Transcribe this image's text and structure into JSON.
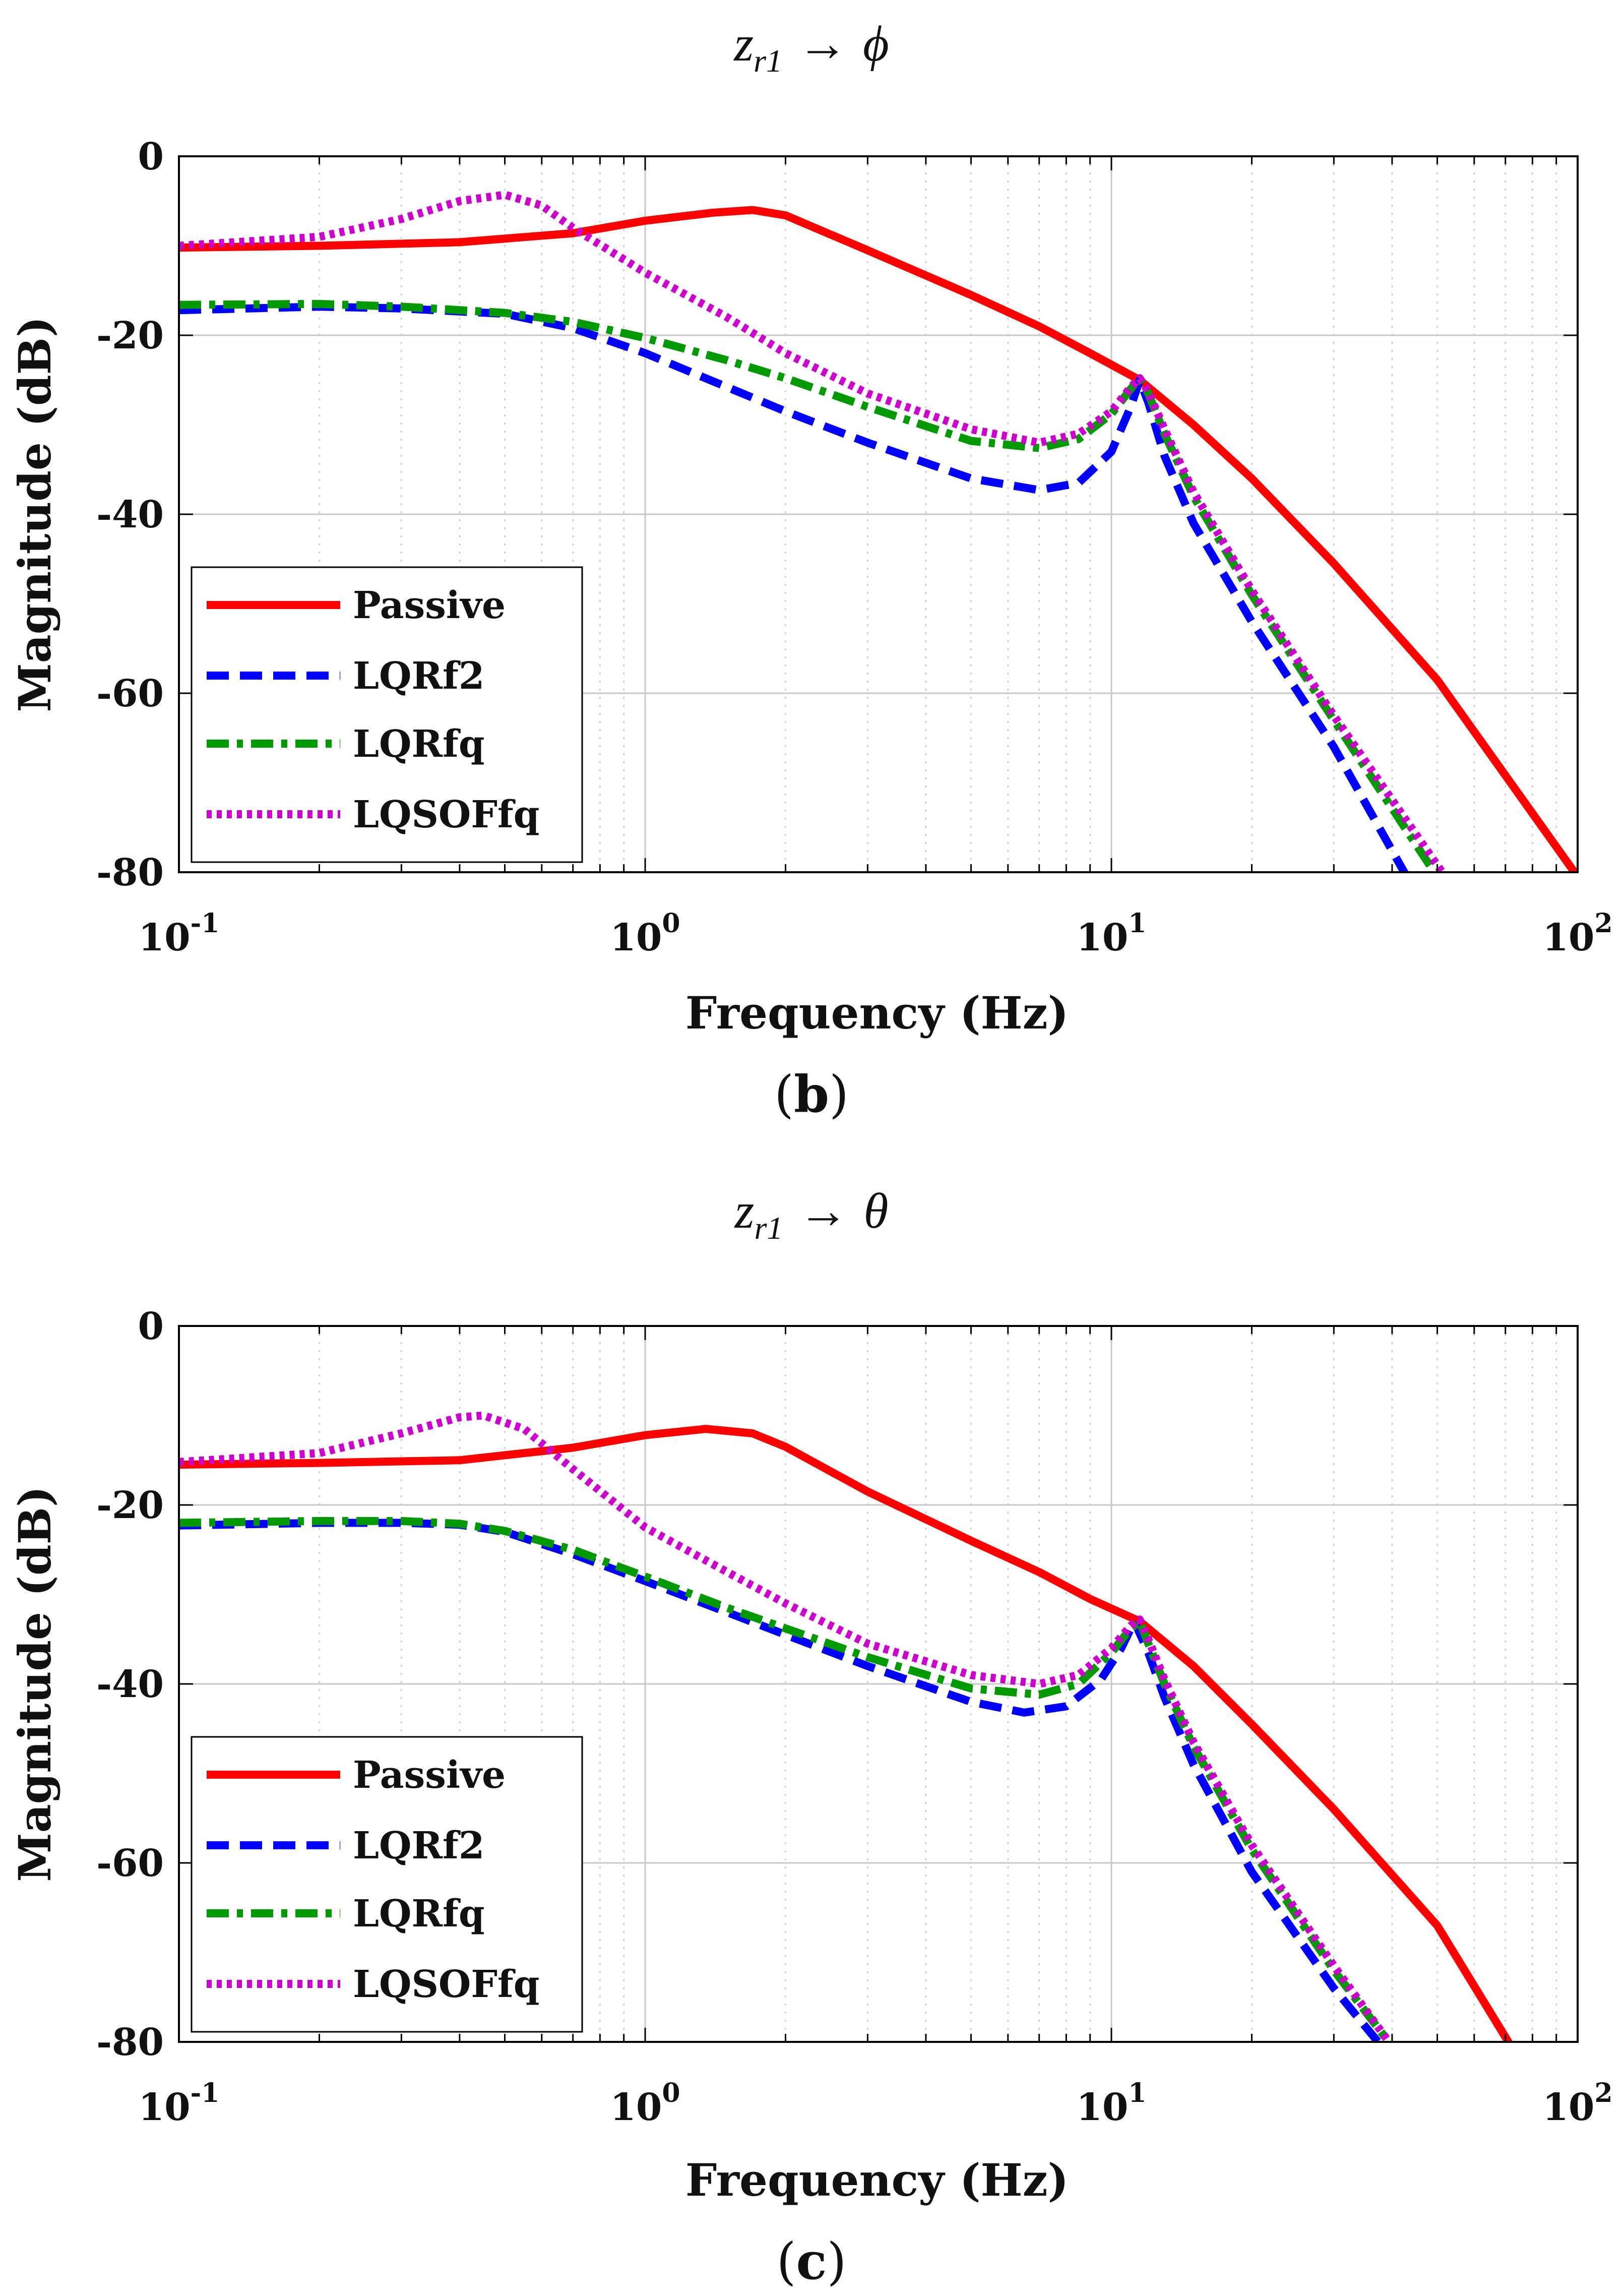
{
  "colors": {
    "passive": "#ff0000",
    "lqrf2": "#0000ff",
    "lqrfq": "#009900",
    "lqsoffq": "#cc00cc",
    "grid": "#c8c8c8",
    "axis": "#000000"
  },
  "chart_data": [
    {
      "type": "line",
      "panel": "b",
      "panel_label": {
        "open": "(",
        "letter": "b",
        "close": ")"
      },
      "title": {
        "base": "z",
        "sub": "r1",
        "arrow": "→",
        "symbol": "ϕ"
      },
      "xlabel": "Frequency (Hz)",
      "ylabel": "Magnitude (dB)",
      "xscale": "log",
      "xlim": [
        0.1,
        100
      ],
      "ylim": [
        -80,
        0
      ],
      "yticks": [
        "0",
        "-20",
        "-40",
        "-60",
        "-80"
      ],
      "xticks": [
        {
          "base": "10",
          "exp": "-1"
        },
        {
          "base": "10",
          "exp": "0"
        },
        {
          "base": "10",
          "exp": "1"
        },
        {
          "base": "10",
          "exp": "2"
        }
      ],
      "grid": true,
      "legend": {
        "position": "bottom-left",
        "entries": [
          "Passive",
          "LQRf2",
          "LQRfq",
          "LQSOFfq"
        ]
      },
      "series": [
        {
          "name": "Passive",
          "style": "solid",
          "x": [
            0.1,
            0.2,
            0.4,
            0.7,
            1.0,
            1.4,
            1.7,
            2.0,
            3.0,
            5.0,
            7.0,
            9.0,
            11.5,
            15,
            20,
            30,
            50,
            100
          ],
          "y": [
            -10.2,
            -10.0,
            -9.6,
            -8.6,
            -7.2,
            -6.3,
            -6.0,
            -6.6,
            -10.5,
            -15.5,
            -19.0,
            -22.0,
            -25.0,
            -30.0,
            -36.0,
            -45.5,
            -58.5,
            -80.5
          ]
        },
        {
          "name": "LQRf2",
          "style": "dashed",
          "x": [
            0.1,
            0.2,
            0.3,
            0.5,
            0.7,
            1.0,
            1.5,
            2.0,
            3.0,
            5.0,
            7.0,
            8.5,
            10.0,
            11.0,
            11.5,
            12.0,
            13.0,
            15,
            20,
            30,
            43
          ],
          "y": [
            -17.2,
            -16.8,
            -17.0,
            -17.6,
            -19.2,
            -22.0,
            -25.8,
            -28.5,
            -32.0,
            -36.0,
            -37.3,
            -36.5,
            -33.0,
            -28.0,
            -25.0,
            -27.5,
            -33.5,
            -41.0,
            -52.0,
            -66.0,
            -80.5
          ]
        },
        {
          "name": "LQRfq",
          "style": "dashdot",
          "x": [
            0.1,
            0.2,
            0.3,
            0.5,
            0.7,
            1.0,
            1.5,
            2.0,
            3.0,
            5.0,
            7.0,
            8.5,
            10.0,
            11.0,
            11.5,
            12.0,
            13.0,
            15,
            20,
            30,
            50
          ],
          "y": [
            -16.6,
            -16.5,
            -16.8,
            -17.5,
            -18.5,
            -20.3,
            -22.8,
            -24.8,
            -28.0,
            -31.8,
            -32.6,
            -31.6,
            -28.8,
            -26.0,
            -24.8,
            -26.5,
            -31.0,
            -38.0,
            -49.0,
            -63.0,
            -80.5
          ]
        },
        {
          "name": "LQSOFfq",
          "style": "dotted",
          "x": [
            0.1,
            0.2,
            0.3,
            0.4,
            0.5,
            0.6,
            0.7,
            1.0,
            1.5,
            2.0,
            3.0,
            5.0,
            7.0,
            8.5,
            10.0,
            11.0,
            11.5,
            12.0,
            13.0,
            15,
            20,
            30,
            52
          ],
          "y": [
            -10.0,
            -9.0,
            -7.0,
            -5.0,
            -4.3,
            -5.5,
            -8.0,
            -13.0,
            -18.0,
            -22.0,
            -26.5,
            -30.5,
            -32.0,
            -31.0,
            -28.5,
            -25.8,
            -24.8,
            -26.3,
            -30.5,
            -37.5,
            -48.5,
            -62.5,
            -80.5
          ]
        }
      ]
    },
    {
      "type": "line",
      "panel": "c",
      "panel_label": {
        "open": "(",
        "letter": "c",
        "close": ")"
      },
      "title": {
        "base": "z",
        "sub": "r1",
        "arrow": "→",
        "symbol": "θ"
      },
      "xlabel": "Frequency (Hz)",
      "ylabel": "Magnitude (dB)",
      "xscale": "log",
      "xlim": [
        0.1,
        100
      ],
      "ylim": [
        -80,
        0
      ],
      "yticks": [
        "0",
        "-20",
        "-40",
        "-60",
        "-80"
      ],
      "xticks": [
        {
          "base": "10",
          "exp": "-1"
        },
        {
          "base": "10",
          "exp": "0"
        },
        {
          "base": "10",
          "exp": "1"
        },
        {
          "base": "10",
          "exp": "2"
        }
      ],
      "grid": true,
      "legend": {
        "position": "bottom-left",
        "entries": [
          "Passive",
          "LQRf2",
          "LQRfq",
          "LQSOFfq"
        ]
      },
      "series": [
        {
          "name": "Passive",
          "style": "solid",
          "x": [
            0.1,
            0.2,
            0.4,
            0.7,
            1.0,
            1.35,
            1.7,
            2.0,
            3.0,
            5.0,
            7.0,
            9.0,
            11.5,
            15,
            20,
            30,
            50,
            72
          ],
          "y": [
            -15.5,
            -15.3,
            -15.0,
            -13.6,
            -12.2,
            -11.5,
            -12.0,
            -13.5,
            -18.5,
            -24.0,
            -27.5,
            -30.5,
            -33.0,
            -38.0,
            -44.5,
            -54.0,
            -67.0,
            -80.5
          ]
        },
        {
          "name": "LQRf2",
          "style": "dashed",
          "x": [
            0.1,
            0.2,
            0.3,
            0.4,
            0.5,
            0.7,
            1.0,
            1.5,
            2.0,
            3.0,
            5.0,
            6.5,
            8.0,
            9.5,
            10.5,
            11.2,
            12.0,
            13.0,
            15,
            20,
            30,
            38
          ],
          "y": [
            -22.3,
            -22.0,
            -22.0,
            -22.2,
            -23.0,
            -25.5,
            -28.5,
            -32.0,
            -34.5,
            -38.0,
            -42.0,
            -43.2,
            -42.5,
            -39.5,
            -36.0,
            -33.0,
            -36.5,
            -41.5,
            -49.0,
            -61.0,
            -74.0,
            -80.5
          ]
        },
        {
          "name": "LQRfq",
          "style": "dashdot",
          "x": [
            0.1,
            0.2,
            0.3,
            0.4,
            0.5,
            0.7,
            1.0,
            1.5,
            2.0,
            3.0,
            5.0,
            7.0,
            8.5,
            10.0,
            11.0,
            11.5,
            12.0,
            13.0,
            15,
            20,
            30,
            40
          ],
          "y": [
            -22.0,
            -21.8,
            -21.8,
            -22.1,
            -22.9,
            -25.0,
            -28.0,
            -31.5,
            -33.8,
            -37.0,
            -40.5,
            -41.2,
            -40.0,
            -36.5,
            -33.8,
            -33.0,
            -35.5,
            -40.0,
            -47.0,
            -58.5,
            -72.0,
            -80.5
          ]
        },
        {
          "name": "LQSOFfq",
          "style": "dotted",
          "x": [
            0.1,
            0.2,
            0.3,
            0.4,
            0.45,
            0.55,
            0.7,
            1.0,
            1.5,
            2.0,
            3.0,
            5.0,
            7.0,
            8.5,
            10.0,
            11.0,
            11.5,
            12.0,
            13.0,
            15,
            20,
            30,
            40
          ],
          "y": [
            -15.2,
            -14.2,
            -12.0,
            -10.2,
            -10.0,
            -11.5,
            -16.0,
            -22.5,
            -27.5,
            -31.0,
            -35.5,
            -39.0,
            -40.0,
            -39.0,
            -36.0,
            -33.5,
            -32.8,
            -35.0,
            -39.5,
            -46.5,
            -58.0,
            -71.5,
            -80.5
          ]
        }
      ]
    }
  ]
}
